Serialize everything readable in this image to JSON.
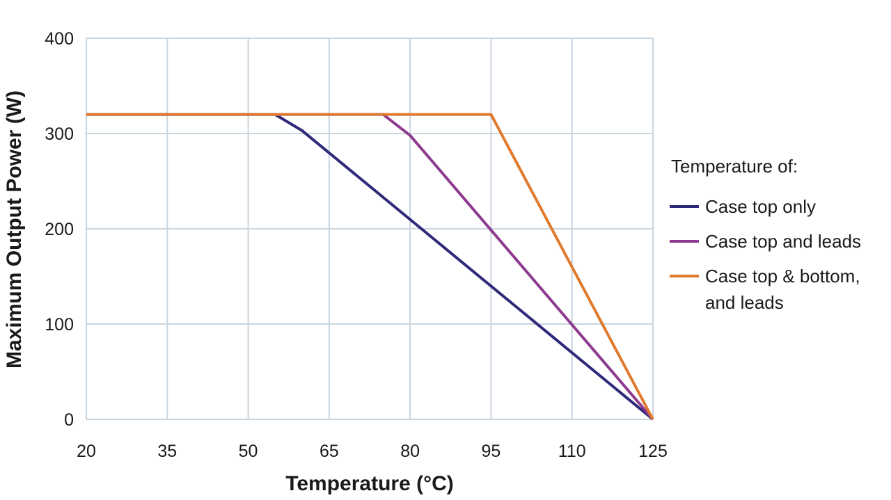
{
  "chart_data": {
    "type": "line",
    "title": "",
    "xlabel": "Temperature (°C)",
    "ylabel": "Maximum Output Power (W)",
    "xlim": [
      20,
      125
    ],
    "ylim": [
      0,
      400
    ],
    "x_ticks": [
      20,
      35,
      50,
      65,
      80,
      95,
      110,
      125
    ],
    "y_ticks": [
      0,
      100,
      200,
      300,
      400
    ],
    "grid": true,
    "legend_title": "Temperature of:",
    "legend_position": "right",
    "series": [
      {
        "name": "Case top only",
        "color": "#2e2a7a",
        "points": [
          [
            20,
            320
          ],
          [
            55,
            320
          ],
          [
            60,
            303
          ],
          [
            125,
            0
          ]
        ]
      },
      {
        "name": "Case top and leads",
        "color": "#8c3a8e",
        "points": [
          [
            20,
            320
          ],
          [
            75,
            320
          ],
          [
            80,
            298
          ],
          [
            125,
            0
          ]
        ]
      },
      {
        "name": "Case top & bottom, and leads",
        "legend_lines": [
          "Case top & bottom,",
          "and leads"
        ],
        "color": "#e07a2e",
        "points": [
          [
            20,
            320
          ],
          [
            95,
            320
          ],
          [
            125,
            0
          ]
        ]
      }
    ]
  }
}
